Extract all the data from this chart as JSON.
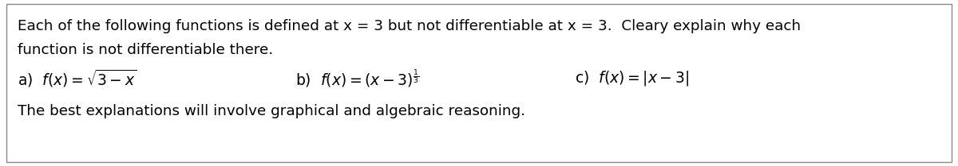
{
  "bg_color": "#ffffff",
  "box_color": "#ffffff",
  "box_edge_color": "#888888",
  "text_color": "#000000",
  "line1": "Each of the following functions is defined at x = 3 but not differentiable at x = 3.  Cleary explain why each",
  "line2": "function is not differentiable there.",
  "bottom_line": "The best explanations will involve graphical and algebraic reasoning.",
  "fontsize_main": 13.2,
  "fontsize_math": 13.5,
  "font_family": "DejaVu Sans"
}
